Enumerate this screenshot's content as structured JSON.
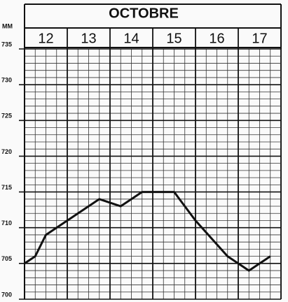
{
  "chart_data": {
    "type": "line",
    "title": "OCTOBRE",
    "ylabel": "MM",
    "x": [
      12.0,
      12.25,
      12.5,
      13.0,
      13.5,
      13.75,
      14.25,
      14.75,
      15.5,
      16.0,
      16.75,
      17.25,
      17.75
    ],
    "series": [
      {
        "name": null,
        "color": "#111111",
        "values": [
          705,
          706,
          709,
          711,
          713,
          714,
          713,
          715,
          715,
          711,
          706,
          704,
          706
        ]
      }
    ],
    "xlim": [
      12,
      18
    ],
    "xticks": [
      12,
      13,
      14,
      15,
      16,
      17
    ],
    "ylim": [
      700,
      735
    ],
    "yticks": [
      700,
      705,
      710,
      715,
      720,
      725,
      730,
      735
    ],
    "grid": true
  }
}
